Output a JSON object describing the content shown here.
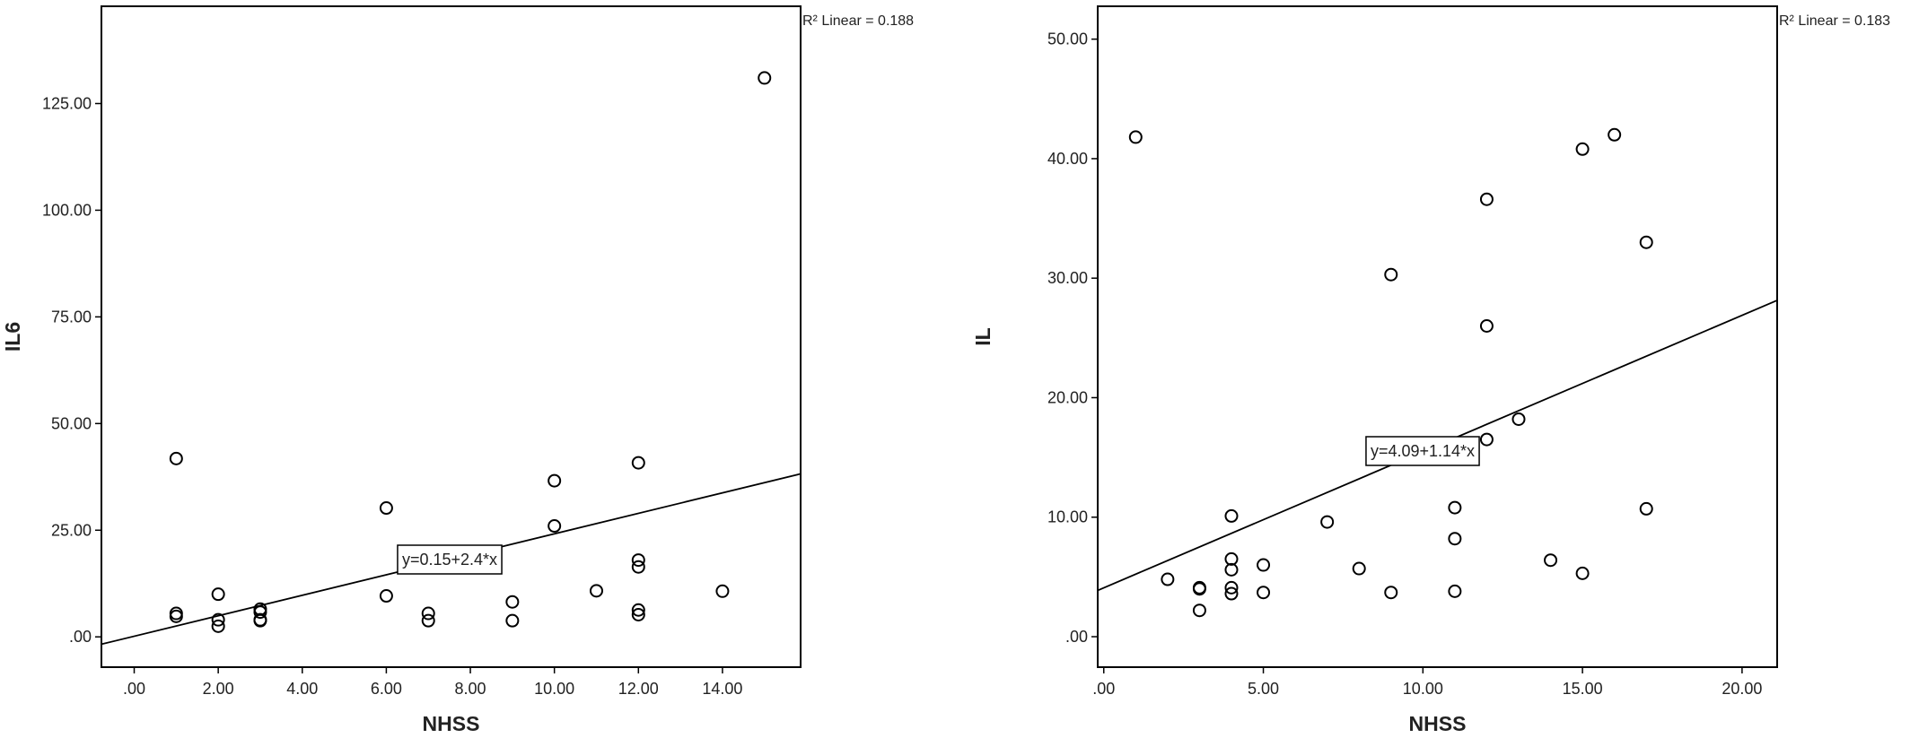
{
  "chart_data": [
    {
      "type": "scatter",
      "x_label": "NHSS",
      "y_label": "IL6",
      "x": [
        1,
        1,
        1,
        2,
        2,
        2,
        3,
        3,
        3,
        3,
        6,
        6,
        7,
        7,
        9,
        9,
        10,
        10,
        11,
        12,
        12,
        12,
        12,
        12,
        14,
        15
      ],
      "values": [
        41.8,
        5.5,
        4.8,
        10,
        4,
        2.5,
        6.5,
        5.8,
        4,
        3.8,
        30.2,
        9.6,
        5.5,
        3.8,
        8.2,
        3.8,
        36.6,
        26,
        10.8,
        40.8,
        18,
        16.4,
        6.3,
        5.2,
        10.7,
        131
      ],
      "xlim": [
        -0.78,
        15.86
      ],
      "xticks": [
        {
          "value": 0,
          "label": ".00"
        },
        {
          "value": 2,
          "label": "2.00"
        },
        {
          "value": 4,
          "label": "4.00"
        },
        {
          "value": 6,
          "label": "6.00"
        },
        {
          "value": 8,
          "label": "8.00"
        },
        {
          "value": 10,
          "label": "10.00"
        },
        {
          "value": 12,
          "label": "12.00"
        },
        {
          "value": 14,
          "label": "14.00"
        }
      ],
      "ylim": [
        -7.1,
        147.8
      ],
      "yticks": [
        {
          "value": 0,
          "label": ".00"
        },
        {
          "value": 25,
          "label": "25.00"
        },
        {
          "value": 50,
          "label": "50.00"
        },
        {
          "value": 75,
          "label": "75.00"
        },
        {
          "value": 100,
          "label": "100.00"
        },
        {
          "value": 125,
          "label": "125.00"
        }
      ],
      "fit": {
        "intercept": 0.15,
        "slope": 2.4
      },
      "fit_label": "y=0.15+2.4*x",
      "r2_label": "R² Linear = 0.188",
      "color": "#000000"
    },
    {
      "type": "scatter",
      "x_label": "NHSS",
      "y_label": "IL",
      "x": [
        1,
        2,
        3,
        3,
        3,
        4,
        4,
        4,
        4,
        4,
        5,
        5,
        7,
        8,
        9,
        9,
        11,
        11,
        11,
        12,
        12,
        12,
        13,
        14,
        15,
        15,
        16,
        17,
        17
      ],
      "values": [
        41.8,
        4.8,
        4.1,
        4,
        2.2,
        10.1,
        6.5,
        5.6,
        4.1,
        3.6,
        6,
        3.7,
        9.6,
        5.7,
        30.3,
        3.7,
        10.8,
        8.2,
        3.8,
        36.6,
        26,
        16.5,
        18.2,
        6.4,
        40.8,
        5.3,
        42,
        33,
        10.7
      ],
      "xlim": [
        -0.19,
        21.1
      ],
      "xticks": [
        {
          "value": 0,
          "label": ".00"
        },
        {
          "value": 5,
          "label": "5.00"
        },
        {
          "value": 10,
          "label": "10.00"
        },
        {
          "value": 15,
          "label": "15.00"
        },
        {
          "value": 20,
          "label": "20.00"
        }
      ],
      "ylim": [
        -2.55,
        52.75
      ],
      "yticks": [
        {
          "value": 0,
          "label": ".00"
        },
        {
          "value": 10,
          "label": "10.00"
        },
        {
          "value": 20,
          "label": "20.00"
        },
        {
          "value": 30,
          "label": "30.00"
        },
        {
          "value": 40,
          "label": "40.00"
        },
        {
          "value": 50,
          "label": "50.00"
        }
      ],
      "fit": {
        "intercept": 4.09,
        "slope": 1.14
      },
      "fit_label": "y=4.09+1.14*x",
      "r2_label": "R² Linear = 0.183",
      "color": "#000000"
    }
  ]
}
